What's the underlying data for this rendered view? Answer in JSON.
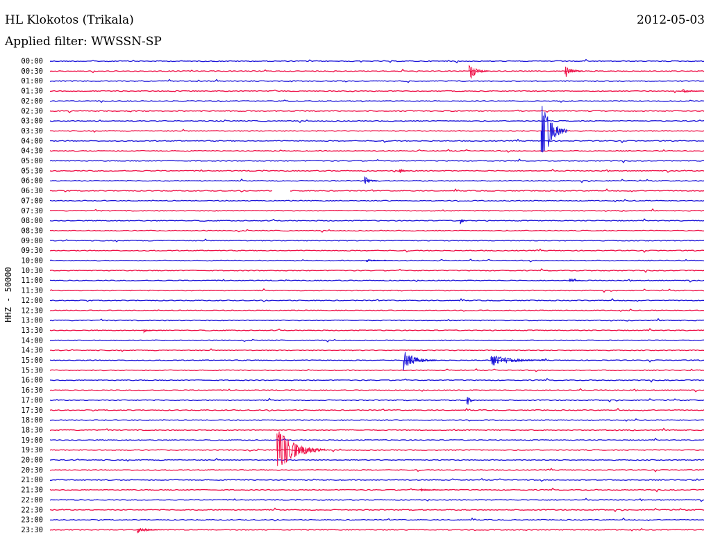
{
  "header": {
    "station": "HL Klokotos (Trikala)",
    "date": "2012-05-03",
    "filter": "Applied filter: WWSSN-SP",
    "channel_label": "HHZ - 50000"
  },
  "colors": {
    "blue": "#1b14d9",
    "red": "#ee0e45",
    "background": "#ffffff"
  },
  "chart_data": {
    "type": "line",
    "title": "HL Klokotos (Trikala)",
    "subtitle": "Applied filter: WWSSN-SP",
    "ylabel": "HHZ - 50000",
    "xlabel": "",
    "categories": [
      "00:00",
      "00:30",
      "01:00",
      "01:30",
      "02:00",
      "02:30",
      "03:00",
      "03:30",
      "04:00",
      "04:30",
      "05:00",
      "05:30",
      "06:00",
      "06:30",
      "07:00",
      "07:30",
      "08:00",
      "08:30",
      "09:00",
      "09:30",
      "10:00",
      "10:30",
      "11:00",
      "11:30",
      "12:00",
      "12:30",
      "13:00",
      "13:30",
      "14:00",
      "14:30",
      "15:00",
      "15:30",
      "16:00",
      "16:30",
      "17:00",
      "17:30",
      "18:00",
      "18:30",
      "19:00",
      "19:30",
      "20:00",
      "20:30",
      "21:00",
      "21:30",
      "22:00",
      "22:30",
      "23:00",
      "23:30"
    ],
    "line_colors": [
      "blue",
      "red"
    ],
    "xlim_minutes": [
      0,
      30
    ],
    "events": [
      {
        "row": "00:30",
        "minute": 19.2,
        "amplitude": 2.1,
        "duration": 0.9,
        "color": "red"
      },
      {
        "row": "00:30",
        "minute": 23.6,
        "amplitude": 1.6,
        "duration": 0.8,
        "color": "red"
      },
      {
        "row": "01:30",
        "minute": 29.0,
        "amplitude": 0.4,
        "duration": 0.9,
        "color": "red"
      },
      {
        "row": "03:30",
        "minute": 22.5,
        "amplitude": 8.0,
        "duration": 1.2,
        "color": "blue"
      },
      {
        "row": "05:30",
        "minute": 16.0,
        "amplitude": 0.6,
        "duration": 0.5,
        "color": "red"
      },
      {
        "row": "06:00",
        "minute": 14.4,
        "amplitude": 1.1,
        "duration": 0.6,
        "color": "blue"
      },
      {
        "row": "08:00",
        "minute": 18.8,
        "amplitude": 0.9,
        "duration": 0.3,
        "color": "blue"
      },
      {
        "row": "10:00",
        "minute": 14.5,
        "amplitude": 0.3,
        "duration": 1.2,
        "color": "blue"
      },
      {
        "row": "11:00",
        "minute": 23.8,
        "amplitude": 0.5,
        "duration": 0.6,
        "color": "blue"
      },
      {
        "row": "13:30",
        "minute": 4.3,
        "amplitude": 0.4,
        "duration": 0.6,
        "color": "red"
      },
      {
        "row": "15:00",
        "minute": 16.2,
        "amplitude": 2.2,
        "duration": 1.5,
        "color": "blue"
      },
      {
        "row": "15:00",
        "minute": 20.2,
        "amplitude": 1.3,
        "duration": 2.5,
        "color": "blue"
      },
      {
        "row": "17:00",
        "minute": 19.1,
        "amplitude": 1.4,
        "duration": 0.4,
        "color": "blue"
      },
      {
        "row": "19:30",
        "minute": 10.4,
        "amplitude": 5.0,
        "duration": 2.2,
        "color": "red"
      },
      {
        "row": "21:30",
        "minute": 17.0,
        "amplitude": 0.3,
        "duration": 1.0,
        "color": "red"
      },
      {
        "row": "23:30",
        "minute": 4.0,
        "amplitude": 0.6,
        "duration": 1.2,
        "color": "red"
      }
    ],
    "gaps": [
      {
        "row": "06:30",
        "minute_start": 10.2,
        "minute_end": 11.0
      }
    ],
    "grid": false,
    "legend": "none"
  }
}
